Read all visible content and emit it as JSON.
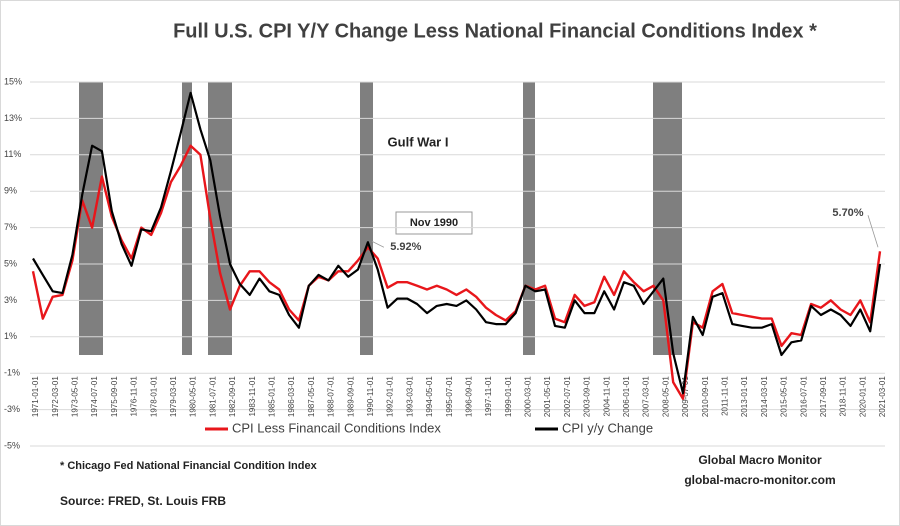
{
  "chart_data": {
    "type": "line",
    "title": "Full U.S. CPI Y/Y Change Less National Financial Conditions Index *",
    "categories": [
      "1971-01-01",
      null,
      "1972-03-01",
      null,
      "1973-05-01",
      null,
      "1974-07-01",
      null,
      "1975-09-01",
      null,
      "1976-11-01",
      null,
      "1978-01-01",
      null,
      "1979-03-01",
      null,
      "1980-05-01",
      null,
      "1981-07-01",
      null,
      "1982-09-01",
      null,
      "1983-11-01",
      null,
      "1985-01-01",
      null,
      "1986-03-01",
      null,
      "1987-05-01",
      null,
      "1988-07-01",
      null,
      "1989-09-01",
      null,
      "1990-11-01",
      null,
      "1992-01-01",
      null,
      "1993-03-01",
      null,
      "1994-05-01",
      null,
      "1995-07-01",
      null,
      "1996-09-01",
      null,
      "1997-11-01",
      null,
      "1999-01-01",
      null,
      "2000-03-01",
      null,
      "2001-05-01",
      null,
      "2002-07-01",
      null,
      "2003-09-01",
      null,
      "2004-11-01",
      null,
      "2006-01-01",
      null,
      "2007-03-01",
      null,
      "2008-05-01",
      null,
      "2009-07-01",
      null,
      "2010-09-01",
      null,
      "2011-11-01",
      null,
      "2013-01-01",
      null,
      "2014-03-01",
      null,
      "2015-05-01",
      null,
      "2016-07-01",
      null,
      "2017-09-01",
      null,
      "2018-11-01",
      null,
      "2020-01-01",
      null,
      "2021-03-01"
    ],
    "series": [
      {
        "name": "CPI Less Financail Conditions Index",
        "color": "#e8161b",
        "values": [
          4.6,
          2.0,
          3.2,
          3.3,
          5.2,
          8.5,
          7.0,
          9.8,
          7.6,
          6.3,
          5.3,
          7.0,
          6.6,
          7.8,
          9.5,
          10.4,
          11.5,
          11.0,
          7.5,
          4.5,
          2.5,
          3.8,
          4.6,
          4.6,
          4.0,
          3.6,
          2.5,
          1.9,
          3.8,
          4.3,
          4.1,
          4.6,
          4.6,
          5.2,
          5.92,
          5.3,
          3.7,
          4.0,
          4.0,
          3.8,
          3.6,
          3.8,
          3.6,
          3.3,
          3.6,
          3.2,
          2.6,
          2.2,
          1.9,
          2.4,
          3.8,
          3.6,
          3.8,
          2.0,
          1.8,
          3.3,
          2.7,
          2.9,
          4.3,
          3.3,
          4.6,
          4.0,
          3.5,
          3.8,
          3.0,
          -1.5,
          -2.4,
          1.8,
          1.5,
          3.5,
          3.9,
          2.3,
          2.2,
          2.1,
          2.0,
          2.0,
          0.5,
          1.2,
          1.1,
          2.8,
          2.6,
          3.0,
          2.5,
          2.2,
          3.0,
          1.8,
          5.7
        ],
        "value_labels": [
          null,
          null,
          null,
          null,
          null,
          null,
          null,
          null,
          null,
          null,
          null,
          null,
          null,
          null,
          null,
          null,
          null,
          null,
          null,
          null,
          null,
          null,
          null,
          null,
          null,
          null,
          null,
          null,
          null,
          null,
          null,
          null,
          null,
          null,
          "5.92%",
          null,
          null,
          null,
          null,
          null,
          null,
          null,
          null,
          null,
          null,
          null,
          null,
          null,
          null,
          null,
          null,
          null,
          null,
          null,
          null,
          null,
          null,
          null,
          null,
          null,
          null,
          null,
          null,
          null,
          null,
          null,
          null,
          null,
          null,
          null,
          null,
          null,
          null,
          null,
          null,
          null,
          null,
          null,
          null,
          null,
          null,
          null,
          null,
          null,
          null,
          null,
          "5.70%"
        ]
      },
      {
        "name": "CPI y/y Change",
        "color": "#000000",
        "values": [
          5.3,
          4.4,
          3.5,
          3.4,
          5.5,
          8.8,
          11.5,
          11.2,
          7.9,
          6.1,
          4.9,
          6.9,
          6.8,
          8.1,
          10.1,
          12.2,
          14.4,
          12.4,
          10.7,
          7.6,
          5.0,
          3.9,
          3.3,
          4.2,
          3.5,
          3.3,
          2.2,
          1.5,
          3.8,
          4.4,
          4.1,
          4.9,
          4.3,
          4.7,
          6.2,
          4.7,
          2.6,
          3.1,
          3.1,
          2.8,
          2.3,
          2.7,
          2.8,
          2.7,
          3.0,
          2.5,
          1.8,
          1.7,
          1.7,
          2.3,
          3.8,
          3.5,
          3.6,
          1.6,
          1.5,
          3.0,
          2.3,
          2.3,
          3.5,
          2.5,
          4.0,
          3.8,
          2.8,
          3.5,
          4.2,
          0.1,
          -2.1,
          2.1,
          1.1,
          3.2,
          3.4,
          1.7,
          1.6,
          1.5,
          1.5,
          1.7,
          0.0,
          0.7,
          0.8,
          2.7,
          2.2,
          2.5,
          2.2,
          1.6,
          2.5,
          1.3,
          5.0
        ]
      }
    ],
    "ylim": [
      -5,
      15
    ],
    "yticks": [
      {
        "value": -5,
        "label": "-5%"
      },
      {
        "value": -3,
        "label": "-3%"
      },
      {
        "value": -1,
        "label": "-1%"
      },
      {
        "value": 1,
        "label": "1%"
      },
      {
        "value": 3,
        "label": "3%"
      },
      {
        "value": 5,
        "label": "5%"
      },
      {
        "value": 7,
        "label": "7%"
      },
      {
        "value": 9,
        "label": "9%"
      },
      {
        "value": 11,
        "label": "11%"
      },
      {
        "value": 13,
        "label": "13%"
      },
      {
        "value": 15,
        "label": "15%"
      }
    ],
    "grid": true,
    "annotations": {
      "gulf_war": "Gulf War I",
      "nov_1990": "Nov 1990",
      "footnote": "* Chicago Fed National Financial Condition Index",
      "source": "Source:   FRED, St. Louis FRB",
      "brand": "Global Macro Monitor",
      "website": "global-macro-monitor.com"
    }
  }
}
